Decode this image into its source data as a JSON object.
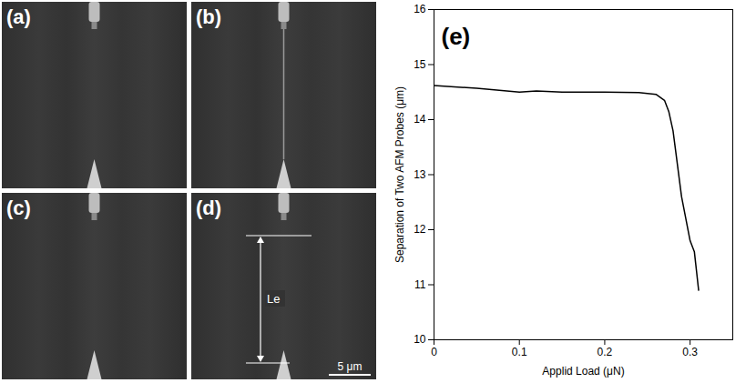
{
  "images": [
    {
      "label": "(a)"
    },
    {
      "label": "(b)"
    },
    {
      "label": "(c)"
    },
    {
      "label": "(d)",
      "annotation": "Le",
      "scale_bar": "5 μm"
    }
  ],
  "chart_data": {
    "type": "line",
    "title": "(e)",
    "x_label": "Applid Load (μN)",
    "y_label": "Separation of Two AFM Probes (μm)",
    "x": [
      0,
      0.05,
      0.1,
      0.12,
      0.15,
      0.2,
      0.24,
      0.26,
      0.27,
      0.275,
      0.28,
      0.285,
      0.29,
      0.295,
      0.3,
      0.305,
      0.31
    ],
    "values": [
      14.62,
      14.57,
      14.5,
      14.52,
      14.5,
      14.5,
      14.49,
      14.46,
      14.35,
      14.15,
      13.8,
      13.2,
      12.6,
      12.2,
      11.8,
      11.6,
      10.9
    ],
    "color": "#000000",
    "xlim": [
      0,
      0.35
    ],
    "ylim": [
      10,
      16
    ],
    "xticks": [
      0,
      0.1,
      0.2,
      0.3
    ],
    "yticks": [
      10,
      11,
      12,
      13,
      14,
      15,
      16
    ],
    "grid": false
  }
}
